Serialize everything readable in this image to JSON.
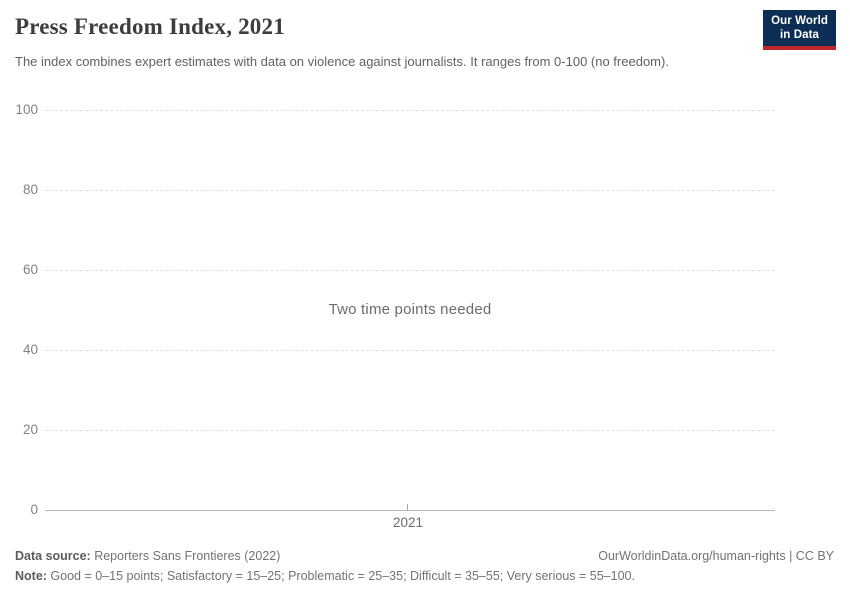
{
  "header": {
    "title": "Press Freedom Index, 2021",
    "subtitle": "The index combines expert estimates with data on violence against journalists. It ranges from 0-100 (no freedom).",
    "logo": {
      "line1": "Our World",
      "line2": "in Data",
      "bg": "#0d2e54",
      "accent": "#c0262c"
    }
  },
  "chart_data": {
    "type": "line",
    "title": "Press Freedom Index, 2021",
    "series": [],
    "x": [],
    "x_ticks": [
      "2021"
    ],
    "y_ticks": [
      0,
      20,
      40,
      60,
      80,
      100
    ],
    "ylim": [
      0,
      100
    ],
    "xlabel": "",
    "ylabel": "",
    "grid": "horizontal-dashed",
    "legend": "none",
    "empty_state_message": "Two time points needed"
  },
  "chart": {
    "message": "Two time points needed",
    "y_axis_labels": [
      "100",
      "80",
      "60",
      "40",
      "20",
      "0"
    ],
    "x_axis_label": "2021"
  },
  "footer": {
    "data_source_label": "Data source:",
    "data_source_value": " Reporters Sans Frontieres (2022)",
    "note_label": "Note:",
    "note_value": " Good = 0–15 points; Satisfactory = 15–25; Problematic = 25–35; Difficult = 35–55; Very serious = 55–100.",
    "attribution": "OurWorldinData.org/human-rights | CC BY"
  }
}
